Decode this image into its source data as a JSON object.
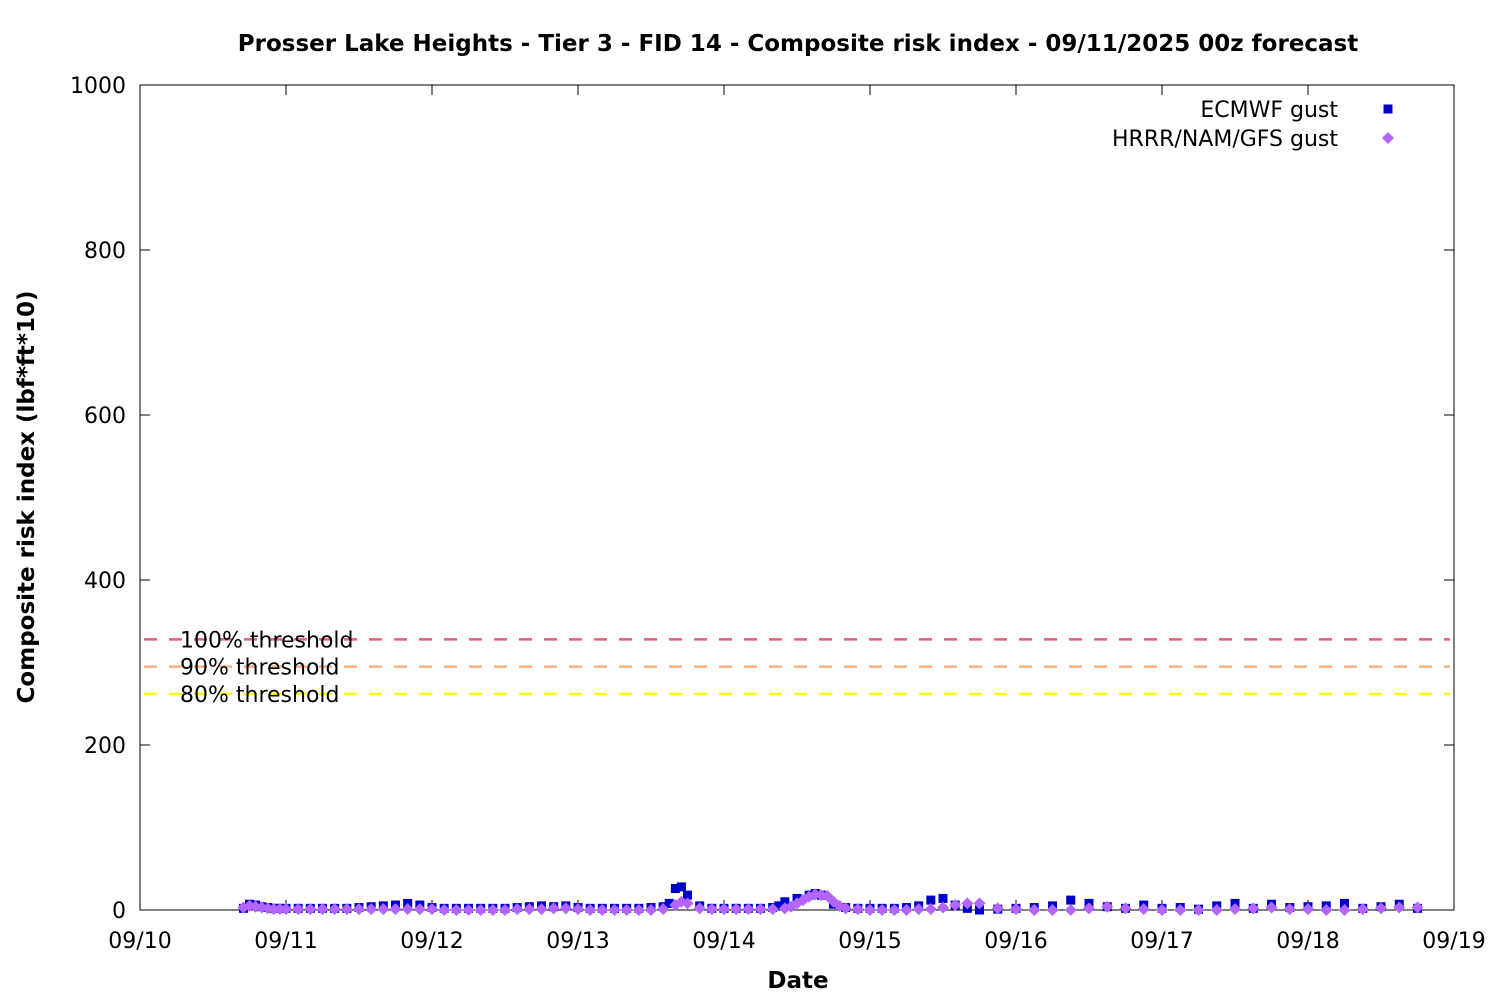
{
  "chart_data": {
    "type": "scatter",
    "title": "Prosser Lake Heights - Tier 3 - FID 14 - Composite risk index - 09/11/2025 00z forecast",
    "xlabel": "Date",
    "ylabel": "Composite risk index (lbf*ft*10)",
    "xlim": [
      "09/10",
      "09/19"
    ],
    "ylim": [
      0,
      1000
    ],
    "x_ticks": [
      "09/10",
      "09/11",
      "09/12",
      "09/13",
      "09/14",
      "09/15",
      "09/16",
      "09/17",
      "09/18",
      "09/19"
    ],
    "y_ticks": [
      0,
      200,
      400,
      600,
      800,
      1000
    ],
    "grid": false,
    "legend_position": "top-right",
    "thresholds": [
      {
        "label": "100% threshold",
        "value": 328,
        "color": "#e0607e"
      },
      {
        "label": "90% threshold",
        "value": 295,
        "color": "#f4b183"
      },
      {
        "label": "80% threshold",
        "value": 262,
        "color": "#ffff00"
      }
    ],
    "series": [
      {
        "name": "ECMWF gust",
        "color": "#0000cc",
        "marker": "square",
        "x": [
          "09/10 17:00",
          "09/10 18:00",
          "09/10 19:00",
          "09/10 20:00",
          "09/10 21:00",
          "09/10 22:00",
          "09/10 23:00",
          "09/11 00:00",
          "09/11 02:00",
          "09/11 04:00",
          "09/11 06:00",
          "09/11 08:00",
          "09/11 10:00",
          "09/11 12:00",
          "09/11 14:00",
          "09/11 16:00",
          "09/11 18:00",
          "09/11 20:00",
          "09/11 22:00",
          "09/12 00:00",
          "09/12 02:00",
          "09/12 04:00",
          "09/12 06:00",
          "09/12 08:00",
          "09/12 10:00",
          "09/12 12:00",
          "09/12 14:00",
          "09/12 16:00",
          "09/12 18:00",
          "09/12 20:00",
          "09/12 22:00",
          "09/13 00:00",
          "09/13 02:00",
          "09/13 04:00",
          "09/13 06:00",
          "09/13 08:00",
          "09/13 10:00",
          "09/13 12:00",
          "09/13 14:00",
          "09/13 15:00",
          "09/13 16:00",
          "09/13 17:00",
          "09/13 18:00",
          "09/13 20:00",
          "09/13 22:00",
          "09/14 00:00",
          "09/14 02:00",
          "09/14 04:00",
          "09/14 06:00",
          "09/14 08:00",
          "09/14 09:00",
          "09/14 10:00",
          "09/14 12:00",
          "09/14 14:00",
          "09/14 15:00",
          "09/14 16:00",
          "09/14 18:00",
          "09/14 20:00",
          "09/14 22:00",
          "09/15 00:00",
          "09/15 02:00",
          "09/15 04:00",
          "09/15 06:00",
          "09/15 08:00",
          "09/15 10:00",
          "09/15 12:00",
          "09/15 14:00",
          "09/15 16:00",
          "09/15 18:00",
          "09/15 21:00",
          "09/16 00:00",
          "09/16 03:00",
          "09/16 06:00",
          "09/16 09:00",
          "09/16 12:00",
          "09/16 15:00",
          "09/16 18:00",
          "09/16 21:00",
          "09/17 00:00",
          "09/17 03:00",
          "09/17 06:00",
          "09/17 09:00",
          "09/17 12:00",
          "09/17 15:00",
          "09/17 18:00",
          "09/17 21:00",
          "09/18 00:00",
          "09/18 03:00",
          "09/18 06:00",
          "09/18 09:00",
          "09/18 12:00",
          "09/18 15:00",
          "09/18 18:00"
        ],
        "y": [
          2,
          7,
          6,
          4,
          3,
          2,
          2,
          2,
          2,
          2,
          2,
          2,
          2,
          3,
          4,
          5,
          6,
          8,
          6,
          3,
          2,
          2,
          2,
          2,
          2,
          2,
          3,
          4,
          5,
          4,
          5,
          3,
          2,
          2,
          2,
          2,
          2,
          3,
          4,
          8,
          26,
          28,
          18,
          5,
          2,
          2,
          2,
          2,
          2,
          3,
          5,
          10,
          14,
          18,
          20,
          18,
          7,
          3,
          2,
          2,
          2,
          2,
          3,
          5,
          12,
          14,
          6,
          2,
          0,
          1,
          2,
          3,
          5,
          12,
          8,
          4,
          2,
          6,
          2,
          3,
          1,
          5,
          8,
          2,
          7,
          3,
          4,
          5,
          8,
          2,
          4,
          7,
          2
        ]
      },
      {
        "name": "HRRR/NAM/GFS gust",
        "color": "#b266ff",
        "marker": "diamond",
        "x": [
          "09/10 17:00",
          "09/10 18:00",
          "09/10 19:00",
          "09/10 20:00",
          "09/10 21:00",
          "09/10 22:00",
          "09/10 23:00",
          "09/11 00:00",
          "09/11 02:00",
          "09/11 04:00",
          "09/11 06:00",
          "09/11 08:00",
          "09/11 10:00",
          "09/11 12:00",
          "09/11 14:00",
          "09/11 16:00",
          "09/11 18:00",
          "09/11 20:00",
          "09/11 22:00",
          "09/12 00:00",
          "09/12 02:00",
          "09/12 04:00",
          "09/12 06:00",
          "09/12 08:00",
          "09/12 10:00",
          "09/12 12:00",
          "09/12 14:00",
          "09/12 16:00",
          "09/12 18:00",
          "09/12 20:00",
          "09/12 22:00",
          "09/13 00:00",
          "09/13 02:00",
          "09/13 04:00",
          "09/13 06:00",
          "09/13 08:00",
          "09/13 10:00",
          "09/13 12:00",
          "09/13 14:00",
          "09/13 16:00",
          "09/13 17:00",
          "09/13 18:00",
          "09/13 20:00",
          "09/13 22:00",
          "09/14 00:00",
          "09/14 02:00",
          "09/14 04:00",
          "09/14 06:00",
          "09/14 08:00",
          "09/14 10:00",
          "09/14 11:00",
          "09/14 12:00",
          "09/14 13:00",
          "09/14 14:00",
          "09/14 15:00",
          "09/14 16:00",
          "09/14 17:00",
          "09/14 18:00",
          "09/14 19:00",
          "09/14 20:00",
          "09/14 22:00",
          "09/15 00:00",
          "09/15 02:00",
          "09/15 04:00",
          "09/15 06:00",
          "09/15 08:00",
          "09/15 10:00",
          "09/15 12:00",
          "09/15 14:00",
          "09/15 16:00",
          "09/15 18:00",
          "09/15 21:00",
          "09/16 00:00",
          "09/16 03:00",
          "09/16 06:00",
          "09/16 09:00",
          "09/16 12:00",
          "09/16 15:00",
          "09/16 18:00",
          "09/16 21:00",
          "09/17 00:00",
          "09/17 03:00",
          "09/17 06:00",
          "09/17 09:00",
          "09/17 12:00",
          "09/17 15:00",
          "09/17 18:00",
          "09/17 21:00",
          "09/18 00:00",
          "09/18 03:00",
          "09/18 06:00",
          "09/18 09:00",
          "09/18 12:00",
          "09/18 15:00",
          "09/18 18:00"
        ],
        "y": [
          3,
          5,
          4,
          3,
          2,
          1,
          1,
          1,
          1,
          1,
          1,
          1,
          1,
          1,
          1,
          1,
          1,
          1,
          1,
          1,
          0,
          0,
          0,
          0,
          0,
          0,
          1,
          1,
          1,
          2,
          2,
          1,
          0,
          0,
          0,
          0,
          0,
          0,
          1,
          6,
          10,
          8,
          2,
          1,
          1,
          1,
          1,
          1,
          1,
          2,
          4,
          8,
          12,
          16,
          19,
          18,
          17,
          10,
          5,
          2,
          1,
          0,
          0,
          0,
          0,
          1,
          1,
          3,
          6,
          8,
          8,
          2,
          1,
          0,
          0,
          0,
          2,
          4,
          2,
          1,
          0,
          0,
          0,
          0,
          1,
          2,
          3,
          1,
          1,
          0,
          0,
          1,
          2,
          3,
          3
        ]
      }
    ]
  }
}
